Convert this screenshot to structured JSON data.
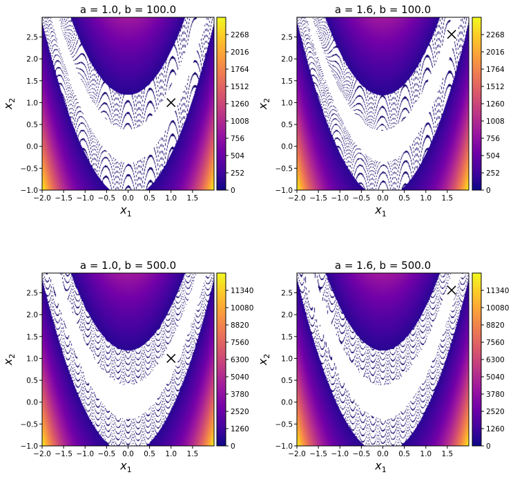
{
  "chart_data": [
    {
      "type": "heatmap",
      "title": "a = 1.0, b = 100.0",
      "a": 1.0,
      "b": 100.0,
      "xlabel": "x",
      "xlabel_sub": "1",
      "ylabel": "x",
      "ylabel_sub": "2",
      "xlim": [
        -2.0,
        2.0
      ],
      "ylim": [
        -1.0,
        2.95
      ],
      "xticks": [
        "-2.0",
        "-1.5",
        "-1.0",
        "-0.5",
        "0.0",
        "0.5",
        "1.0",
        "1.5"
      ],
      "yticks": [
        "-1.0",
        "-0.5",
        "0.0",
        "0.5",
        "1.0",
        "1.5",
        "2.0",
        "2.5"
      ],
      "colorbar_ticks": [
        "0",
        "252",
        "504",
        "756",
        "1008",
        "1260",
        "1512",
        "1764",
        "2016",
        "2268"
      ],
      "colorbar_max": 2520,
      "colormap": "plasma",
      "minimum_marker": {
        "x": 1.0,
        "y": 1.0,
        "symbol": "x"
      }
    },
    {
      "type": "heatmap",
      "title": "a = 1.6, b = 100.0",
      "a": 1.6,
      "b": 100.0,
      "xlabel": "x",
      "xlabel_sub": "1",
      "ylabel": "x",
      "ylabel_sub": "2",
      "xlim": [
        -2.0,
        2.0
      ],
      "ylim": [
        -1.0,
        2.95
      ],
      "xticks": [
        "-2.0",
        "-1.5",
        "-1.0",
        "-0.5",
        "0.0",
        "0.5",
        "1.0",
        "1.5"
      ],
      "yticks": [
        "-1.0",
        "-0.5",
        "0.0",
        "0.5",
        "1.0",
        "1.5",
        "2.0",
        "2.5"
      ],
      "colorbar_ticks": [
        "0",
        "252",
        "504",
        "756",
        "1008",
        "1260",
        "1512",
        "1764",
        "2016",
        "2268"
      ],
      "colorbar_max": 2520,
      "colormap": "plasma",
      "minimum_marker": {
        "x": 1.6,
        "y": 2.56,
        "symbol": "x"
      }
    },
    {
      "type": "heatmap",
      "title": "a = 1.0, b = 500.0",
      "a": 1.0,
      "b": 500.0,
      "xlabel": "x",
      "xlabel_sub": "1",
      "ylabel": "x",
      "ylabel_sub": "2",
      "xlim": [
        -2.0,
        2.0
      ],
      "ylim": [
        -1.0,
        2.95
      ],
      "xticks": [
        "-2.0",
        "-1.5",
        "-1.0",
        "-0.5",
        "0.0",
        "0.5",
        "1.0",
        "1.5"
      ],
      "yticks": [
        "-1.0",
        "-0.5",
        "0.0",
        "0.5",
        "1.0",
        "1.5",
        "2.0",
        "2.5"
      ],
      "colorbar_ticks": [
        "0",
        "1260",
        "2520",
        "3780",
        "5040",
        "6300",
        "7560",
        "8820",
        "10080",
        "11340"
      ],
      "colorbar_max": 12600,
      "colormap": "plasma",
      "minimum_marker": {
        "x": 1.0,
        "y": 1.0,
        "symbol": "x"
      }
    },
    {
      "type": "heatmap",
      "title": "a = 1.6, b = 500.0",
      "a": 1.6,
      "b": 500.0,
      "xlabel": "x",
      "xlabel_sub": "1",
      "ylabel": "x",
      "ylabel_sub": "2",
      "xlim": [
        -2.0,
        2.0
      ],
      "ylim": [
        -1.0,
        2.95
      ],
      "xticks": [
        "-2.0",
        "-1.5",
        "-1.0",
        "-0.5",
        "0.0",
        "0.5",
        "1.0",
        "1.5"
      ],
      "yticks": [
        "-1.0",
        "-0.5",
        "0.0",
        "0.5",
        "1.0",
        "1.5",
        "2.0",
        "2.5"
      ],
      "colorbar_ticks": [
        "0",
        "1260",
        "2520",
        "3780",
        "5040",
        "6300",
        "7560",
        "8820",
        "10080",
        "11340"
      ],
      "colorbar_max": 12600,
      "colormap": "plasma",
      "minimum_marker": {
        "x": 1.6,
        "y": 2.56,
        "symbol": "x"
      }
    }
  ],
  "colors": {
    "contour_line": "#1a0a6e",
    "marker": "#000000",
    "plasma_stops": [
      "#0d0887",
      "#46039f",
      "#7201a8",
      "#9c179e",
      "#bd3786",
      "#d8576b",
      "#ed7953",
      "#fb9f3a",
      "#fdca26",
      "#f0f921"
    ]
  }
}
